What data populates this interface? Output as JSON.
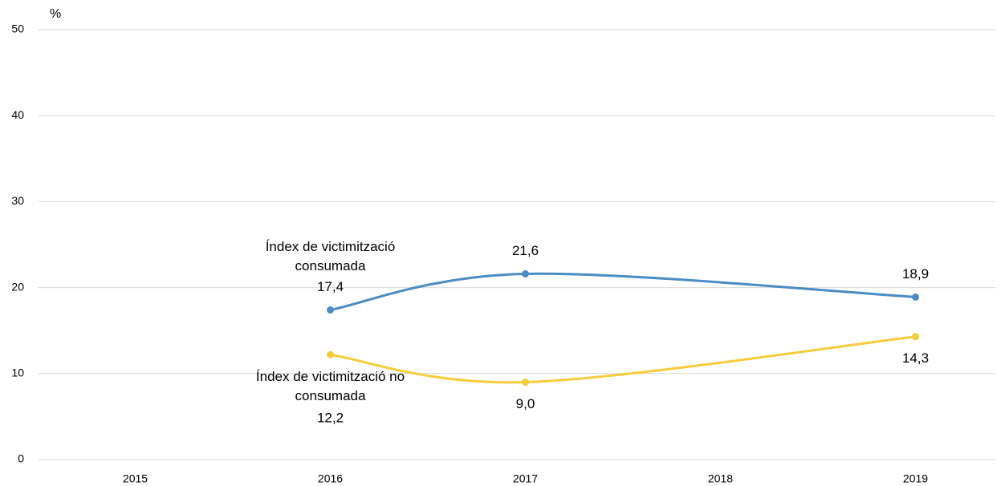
{
  "chart_data": {
    "type": "line",
    "y_label": "%",
    "x": [
      2016,
      2017,
      2019
    ],
    "xlim": [
      2014.5,
      2019.5
    ],
    "xticks": [
      2015,
      2016,
      2017,
      2018,
      2019
    ],
    "ylim": [
      0,
      50
    ],
    "yticks": [
      0,
      10,
      20,
      30,
      40,
      50
    ],
    "grid": true,
    "series": [
      {
        "name": "Índex de victimització consumada",
        "color": "#4a8cc3",
        "values": [
          17.4,
          21.6,
          18.9
        ],
        "value_labels": [
          "17,4",
          "21,6",
          "18,9"
        ]
      },
      {
        "name": "Índex de victimització no consumada",
        "color": "#f7cd3b",
        "values": [
          12.2,
          9.0,
          14.3
        ],
        "value_labels": [
          "12,2",
          "9,0",
          "14,3"
        ]
      }
    ]
  }
}
